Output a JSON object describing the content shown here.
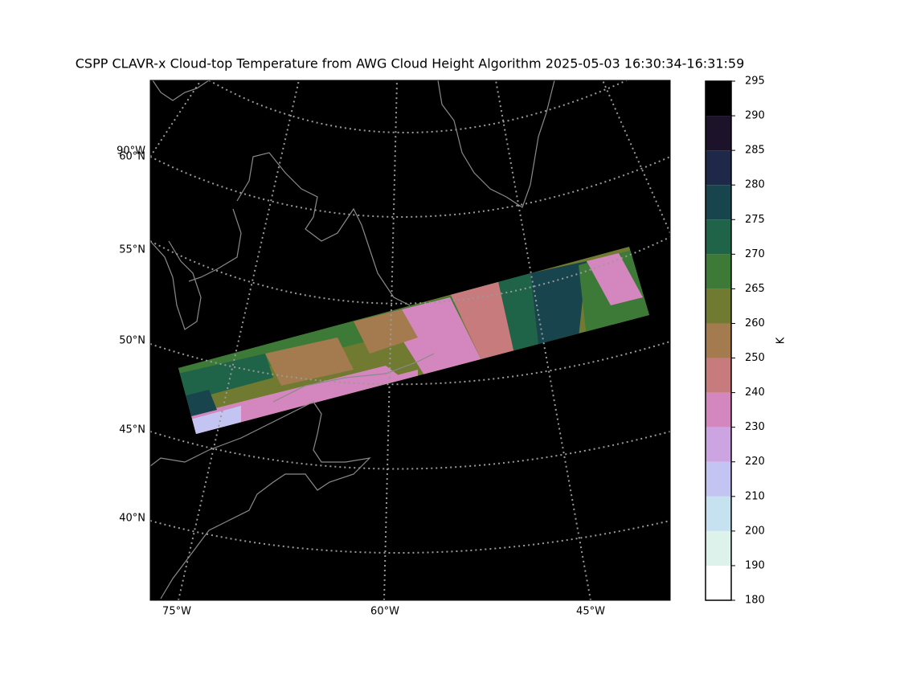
{
  "title": "CSPP CLAVR-x Cloud-top Temperature from AWG Cloud Height Algorithm 2025-05-03 16:30:34-16:31:59",
  "map": {
    "lat_labels": [
      "90°W",
      "60°N",
      "55°N",
      "50°N",
      "45°N",
      "40°N"
    ],
    "lon_labels": [
      "75°W",
      "60°W",
      "45°W"
    ]
  },
  "colorbar": {
    "label": "K",
    "boundaries": [
      180,
      190,
      200,
      210,
      220,
      230,
      240,
      250,
      260,
      265,
      270,
      275,
      280,
      285,
      290,
      295
    ],
    "colors": [
      "#ffffff",
      "#dcf2ea",
      "#c6e1f0",
      "#c4c4f2",
      "#cda4e2",
      "#d486be",
      "#c77b7c",
      "#a47b4e",
      "#707a31",
      "#3e7a37",
      "#1f6348",
      "#17444d",
      "#1e2848",
      "#1c1229",
      "#000000"
    ]
  }
}
